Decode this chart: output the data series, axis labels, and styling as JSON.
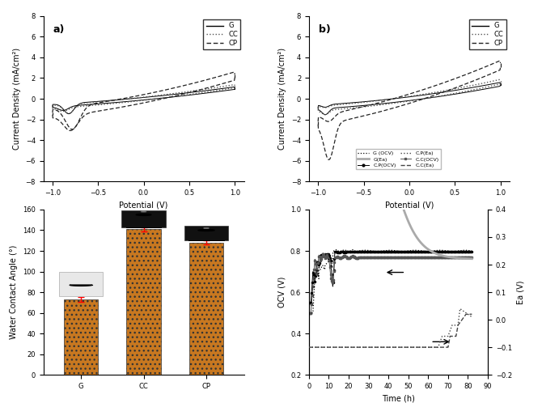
{
  "panel_a": {
    "label": "a)",
    "xlim": [
      -1.1,
      1.1
    ],
    "ylim": [
      -8,
      8
    ],
    "xlabel": "Potential (V)",
    "ylabel": "Current Density (mA/cm²)",
    "yticks": [
      -8,
      -6,
      -4,
      -2,
      0,
      2,
      4,
      6,
      8
    ],
    "xticks": [
      -1.0,
      -0.5,
      0.0,
      0.5,
      1.0
    ]
  },
  "panel_b": {
    "label": "b)",
    "xlim": [
      -1.1,
      1.1
    ],
    "ylim": [
      -8,
      8
    ],
    "xlabel": "Potential (V)",
    "ylabel": "Current Density (mA/cm²)",
    "yticks": [
      -8,
      -6,
      -4,
      -2,
      0,
      2,
      4,
      6,
      8
    ],
    "xticks": [
      -1.0,
      -0.5,
      0.0,
      0.5,
      1.0
    ]
  },
  "panel_c": {
    "categories": [
      "G",
      "CC",
      "CP"
    ],
    "values": [
      73,
      141,
      128
    ],
    "errors": [
      2,
      2,
      2
    ],
    "bar_color": "#c87820",
    "ylabel": "Water Contact Angle (°)",
    "ylim": [
      0,
      160
    ],
    "yticks": [
      0,
      20,
      40,
      60,
      80,
      100,
      120,
      140,
      160
    ]
  },
  "panel_d": {
    "xlabel": "Time (h)",
    "ylabel_left": "OCV (V)",
    "ylabel_right": "Ea (V)",
    "xlim": [
      0,
      90
    ],
    "ylim_left": [
      0.2,
      1.0
    ],
    "ylim_right": [
      -0.2,
      0.4
    ],
    "xticks": [
      0,
      10,
      20,
      30,
      40,
      50,
      60,
      70,
      80,
      90
    ],
    "yticks_left": [
      0.2,
      0.4,
      0.6,
      0.8,
      1.0
    ],
    "yticks_right": [
      -0.2,
      -0.1,
      0.0,
      0.1,
      0.2,
      0.3,
      0.4
    ]
  }
}
